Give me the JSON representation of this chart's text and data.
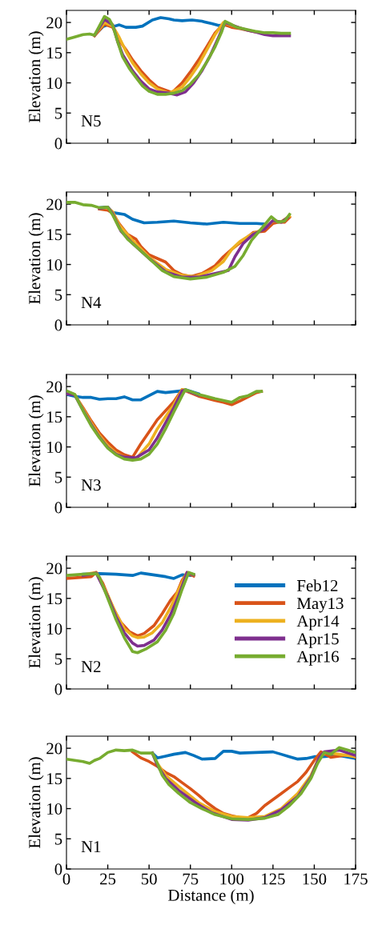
{
  "chart_data": [
    {
      "type": "line",
      "ylabel": "Elevation (m)",
      "annotations": [
        "N5"
      ],
      "xlim": [
        0,
        175
      ],
      "xticks": [
        0,
        25,
        50,
        75,
        100,
        125,
        150,
        175
      ],
      "ylim": [
        0,
        22
      ],
      "yticks": [
        0,
        5,
        10,
        15,
        20
      ],
      "tick_labels": "y",
      "legend": false,
      "series": [
        {
          "color": "#0072bd",
          "x": [
            17,
            22,
            25,
            28,
            32,
            36,
            42,
            46,
            52,
            57,
            62,
            65,
            70,
            76,
            82,
            88,
            92,
            96,
            100
          ],
          "values": [
            17.9,
            19.3,
            19.6,
            19.3,
            19.6,
            19.2,
            19.2,
            19.4,
            20.4,
            20.8,
            20.6,
            20.4,
            20.3,
            20.4,
            20.2,
            19.8,
            19.5,
            19.6,
            19.4
          ]
        },
        {
          "color": "#d95319",
          "x": [
            17,
            23,
            28,
            32,
            36,
            40,
            45,
            50,
            55,
            64,
            70,
            75,
            80,
            85,
            90,
            95,
            100,
            105,
            110,
            115
          ],
          "values": [
            17.8,
            19.7,
            19.2,
            17.0,
            15.5,
            13.8,
            12.0,
            10.5,
            9.3,
            8.4,
            10.0,
            11.8,
            13.8,
            16.0,
            18.3,
            19.7,
            19.2,
            19.0,
            18.7,
            18.4
          ]
        },
        {
          "color": "#edb120",
          "x": [
            17,
            23,
            28,
            32,
            36,
            40,
            45,
            50,
            55,
            62,
            70,
            75,
            80,
            85,
            90,
            95,
            100,
            105
          ],
          "values": [
            17.9,
            20.0,
            19.4,
            17.5,
            15.2,
            13.3,
            11.5,
            10.0,
            9.0,
            8.3,
            9.3,
            11.0,
            13.0,
            15.5,
            18.0,
            20.0,
            19.5,
            19.1
          ]
        },
        {
          "color": "#7e2f8e",
          "x": [
            17,
            23,
            28,
            31,
            34,
            40,
            45,
            50,
            55,
            62,
            67,
            72,
            77,
            82,
            87,
            92,
            96,
            100,
            105,
            110,
            115,
            120,
            125,
            130,
            135
          ],
          "values": [
            17.9,
            20.5,
            19.6,
            16.8,
            14.7,
            12.0,
            10.3,
            9.0,
            8.5,
            8.3,
            8.0,
            8.5,
            10.0,
            12.0,
            14.5,
            17.5,
            20.0,
            19.6,
            19.1,
            18.7,
            18.4,
            18.0,
            17.8,
            17.8,
            17.8
          ]
        },
        {
          "color": "#77ac30",
          "x": [
            0,
            5,
            10,
            14,
            17,
            23,
            26,
            28,
            31,
            34,
            38,
            42,
            46,
            50,
            55,
            60,
            65,
            70,
            75,
            80,
            85,
            90,
            94,
            96,
            99,
            103,
            110,
            115,
            120,
            125,
            130,
            135
          ],
          "values": [
            17.2,
            17.6,
            18.0,
            18.1,
            17.9,
            21.0,
            20.5,
            19.5,
            16.8,
            14.3,
            12.4,
            10.9,
            9.5,
            8.6,
            8.1,
            8.1,
            8.3,
            8.7,
            9.8,
            11.3,
            13.5,
            16.0,
            18.5,
            20.2,
            19.8,
            19.2,
            18.8,
            18.5,
            18.3,
            18.3,
            18.2,
            18.2
          ]
        }
      ]
    },
    {
      "type": "line",
      "ylabel": "Elevation (m)",
      "annotations": [
        "N4"
      ],
      "xlim": [
        0,
        175
      ],
      "xticks": [
        0,
        25,
        50,
        75,
        100,
        125,
        150,
        175
      ],
      "ylim": [
        0,
        22
      ],
      "yticks": [
        0,
        5,
        10,
        15,
        20
      ],
      "tick_labels": "y",
      "legend": false,
      "series": [
        {
          "color": "#0072bd",
          "x": [
            20,
            25,
            28,
            35,
            40,
            47,
            55,
            65,
            75,
            85,
            95,
            105,
            115,
            120
          ],
          "values": [
            19.4,
            19.5,
            18.6,
            18.3,
            17.5,
            16.9,
            17.0,
            17.2,
            16.9,
            16.7,
            17.0,
            16.8,
            16.8,
            16.7
          ]
        },
        {
          "color": "#d95319",
          "x": [
            20,
            25,
            28,
            32,
            37,
            42,
            45,
            50,
            55,
            60,
            65,
            70,
            75,
            82,
            90,
            95,
            100,
            107,
            113,
            120,
            125,
            128,
            132,
            135
          ],
          "values": [
            19.2,
            19.0,
            18.5,
            16.7,
            15.0,
            14.2,
            13.0,
            11.6,
            11.0,
            10.4,
            9.0,
            8.3,
            8.0,
            8.5,
            9.8,
            11.3,
            12.5,
            14.0,
            15.3,
            15.5,
            16.8,
            17.0,
            17.0,
            17.8
          ]
        },
        {
          "color": "#edb120",
          "x": [
            20,
            25,
            28,
            32,
            40,
            50,
            60,
            70,
            78,
            88,
            95,
            100,
            105,
            112,
            120,
            125,
            130,
            135
          ],
          "values": [
            19.3,
            19.4,
            18.7,
            16.5,
            14.0,
            11.2,
            9.2,
            8.2,
            8.0,
            9.0,
            10.5,
            12.5,
            13.8,
            15.0,
            16.0,
            17.2,
            17.1,
            18.0
          ]
        },
        {
          "color": "#7e2f8e",
          "x": [
            20,
            25,
            28,
            33,
            40,
            50,
            60,
            70,
            80,
            90,
            98,
            102,
            107,
            113,
            120,
            125,
            130,
            134
          ],
          "values": [
            19.3,
            19.5,
            18.4,
            15.5,
            13.5,
            11.0,
            8.8,
            7.9,
            7.9,
            8.5,
            9.0,
            11.3,
            13.5,
            15.0,
            15.9,
            17.3,
            17.0,
            17.8
          ]
        },
        {
          "color": "#77ac30",
          "x": [
            0,
            5,
            10,
            15,
            20,
            25,
            28,
            32,
            37,
            42,
            50,
            58,
            65,
            75,
            85,
            95,
            102,
            107,
            112,
            117,
            124,
            128,
            132,
            135
          ],
          "values": [
            20.3,
            20.3,
            19.9,
            19.8,
            19.4,
            19.5,
            18.2,
            16.0,
            14.2,
            13.0,
            11.0,
            9.0,
            8.0,
            7.6,
            7.9,
            8.7,
            9.7,
            11.5,
            14.0,
            15.6,
            17.9,
            17.0,
            17.2,
            18.3
          ]
        }
      ]
    },
    {
      "type": "line",
      "ylabel": "Elevation (m)",
      "annotations": [
        "N3"
      ],
      "xlim": [
        0,
        175
      ],
      "xticks": [
        0,
        25,
        50,
        75,
        100,
        125,
        150,
        175
      ],
      "ylim": [
        0,
        22
      ],
      "yticks": [
        0,
        5,
        10,
        15,
        20
      ],
      "tick_labels": "y",
      "legend": false,
      "series": [
        {
          "color": "#0072bd",
          "x": [
            0,
            5,
            10,
            15,
            20,
            25,
            30,
            35,
            40,
            45,
            50,
            55,
            60,
            70,
            72,
            80
          ],
          "values": [
            18.7,
            18.4,
            18.2,
            18.2,
            17.9,
            18.0,
            18.0,
            18.3,
            17.8,
            17.8,
            18.5,
            19.2,
            19.0,
            19.3,
            19.5,
            18.8
          ]
        },
        {
          "color": "#d95319",
          "x": [
            0,
            5,
            10,
            15,
            20,
            25,
            30,
            35,
            40,
            45,
            50,
            55,
            60,
            65,
            70,
            72,
            80,
            90,
            95,
            100,
            105,
            110,
            115,
            118
          ],
          "values": [
            19.2,
            18.6,
            16.5,
            14.3,
            12.3,
            10.8,
            9.5,
            8.7,
            8.3,
            10.5,
            12.5,
            14.5,
            16.0,
            17.5,
            19.5,
            19.3,
            18.4,
            17.7,
            17.4,
            17.0,
            17.6,
            18.3,
            19.0,
            19.2
          ]
        },
        {
          "color": "#edb120",
          "x": [
            0,
            5,
            10,
            15,
            20,
            25,
            30,
            35,
            42,
            50,
            55,
            60,
            65,
            70,
            72,
            80
          ],
          "values": [
            19.2,
            18.7,
            16.3,
            14.0,
            11.9,
            10.2,
            9.0,
            8.3,
            8.0,
            10.5,
            13.0,
            15.0,
            17.0,
            19.5,
            19.4,
            18.6
          ]
        },
        {
          "color": "#7e2f8e",
          "x": [
            0,
            5,
            10,
            15,
            20,
            25,
            30,
            35,
            42,
            50,
            55,
            60,
            65,
            70,
            72,
            80
          ],
          "values": [
            18.8,
            18.6,
            16.1,
            13.7,
            11.6,
            9.9,
            8.8,
            8.3,
            8.2,
            9.5,
            11.5,
            14.0,
            16.5,
            19.3,
            19.4,
            18.6
          ]
        },
        {
          "color": "#77ac30",
          "x": [
            0,
            5,
            10,
            15,
            20,
            25,
            30,
            35,
            40,
            45,
            50,
            55,
            60,
            65,
            70,
            72,
            80,
            90,
            95,
            100,
            105,
            110,
            115,
            118
          ],
          "values": [
            19.3,
            18.7,
            16.0,
            13.5,
            11.5,
            9.8,
            8.7,
            8.0,
            7.8,
            8.0,
            8.8,
            10.5,
            13.0,
            15.8,
            18.5,
            19.5,
            18.7,
            18.0,
            17.7,
            17.4,
            18.2,
            18.5,
            19.2,
            19.2
          ]
        }
      ]
    },
    {
      "type": "line",
      "ylabel": "Elevation (m)",
      "annotations": [
        "N2"
      ],
      "xlim": [
        0,
        175
      ],
      "xticks": [
        0,
        25,
        50,
        75,
        100,
        125,
        150,
        175
      ],
      "ylim": [
        0,
        22
      ],
      "yticks": [
        0,
        5,
        10,
        15,
        20
      ],
      "tick_labels": "y",
      "legend": "right",
      "series": [
        {
          "name": "Feb12",
          "color": "#0072bd",
          "x": [
            10,
            20,
            30,
            40,
            45,
            50,
            55,
            60,
            65,
            70,
            75
          ],
          "values": [
            19.0,
            19.1,
            19.0,
            18.8,
            19.2,
            19.0,
            18.8,
            18.6,
            18.3,
            18.9,
            18.8
          ]
        },
        {
          "name": "May13",
          "color": "#d95319",
          "x": [
            0,
            15,
            18,
            22,
            28,
            33,
            38,
            43,
            47,
            53,
            58,
            63,
            67,
            70,
            73,
            77
          ],
          "values": [
            18.3,
            18.6,
            19.3,
            17.5,
            13.5,
            11.0,
            9.5,
            8.8,
            9.2,
            10.5,
            12.5,
            14.7,
            16.0,
            18.0,
            19.2,
            18.7
          ]
        },
        {
          "name": "Apr14",
          "color": "#edb120",
          "x": [
            10,
            18,
            25,
            30,
            35,
            40,
            43,
            47,
            52,
            58,
            63,
            68,
            73,
            77
          ],
          "values": [
            18.9,
            19.3,
            15.5,
            12.5,
            10.0,
            8.8,
            8.5,
            8.6,
            9.3,
            11.0,
            13.5,
            16.5,
            19.3,
            18.9
          ]
        },
        {
          "name": "Apr15",
          "color": "#7e2f8e",
          "x": [
            10,
            18,
            25,
            30,
            35,
            40,
            43,
            47,
            53,
            58,
            63,
            68,
            73,
            77
          ],
          "values": [
            18.8,
            19.2,
            15.3,
            12.0,
            9.3,
            7.6,
            7.1,
            7.2,
            8.1,
            9.8,
            12.3,
            15.5,
            19.3,
            18.9
          ]
        },
        {
          "name": "Apr16",
          "color": "#77ac30",
          "x": [
            0,
            10,
            18,
            20,
            25,
            30,
            35,
            40,
            43,
            48,
            55,
            60,
            65,
            70,
            74,
            77
          ],
          "values": [
            18.8,
            19.0,
            19.1,
            18.5,
            15.0,
            11.5,
            8.5,
            6.2,
            6.0,
            6.6,
            7.8,
            9.7,
            12.5,
            16.5,
            19.3,
            19.0
          ]
        }
      ]
    },
    {
      "type": "line",
      "ylabel": "Elevation (m)",
      "xlabel": "Distance (m)",
      "annotations": [
        "N1"
      ],
      "xlim": [
        0,
        175
      ],
      "xticks": [
        0,
        25,
        50,
        75,
        100,
        125,
        150,
        175
      ],
      "ylim": [
        0,
        22
      ],
      "yticks": [
        0,
        5,
        10,
        15,
        20
      ],
      "legend": false,
      "series": [
        {
          "color": "#0072bd",
          "x": [
            52,
            55,
            60,
            65,
            72,
            77,
            82,
            90,
            95,
            100,
            105,
            115,
            125,
            130,
            135,
            140,
            145,
            150,
            155,
            165,
            175
          ],
          "values": [
            19.2,
            18.4,
            18.7,
            19.0,
            19.3,
            18.8,
            18.2,
            18.3,
            19.5,
            19.5,
            19.2,
            19.3,
            19.4,
            19.0,
            18.6,
            18.2,
            18.3,
            18.6,
            18.6,
            18.8,
            18.3
          ]
        },
        {
          "color": "#d95319",
          "x": [
            40,
            45,
            50,
            55,
            60,
            65,
            70,
            75,
            80,
            85,
            90,
            95,
            100,
            105,
            110,
            115,
            120,
            125,
            130,
            135,
            140,
            145,
            150,
            154,
            160,
            170,
            175
          ],
          "values": [
            19.4,
            18.4,
            17.8,
            17.0,
            16.0,
            15.3,
            14.3,
            13.3,
            12.2,
            11.0,
            10.0,
            9.2,
            8.8,
            8.5,
            8.5,
            9.2,
            10.5,
            11.5,
            12.5,
            13.5,
            14.5,
            16.0,
            18.0,
            19.4,
            18.5,
            18.9,
            18.5
          ]
        },
        {
          "color": "#edb120",
          "x": [
            52,
            55,
            60,
            70,
            80,
            90,
            100,
            110,
            120,
            130,
            140,
            148,
            153,
            157,
            165,
            175
          ],
          "values": [
            19.2,
            17.5,
            15.5,
            13.2,
            11.0,
            9.5,
            8.7,
            8.5,
            8.7,
            10.0,
            12.5,
            15.5,
            18.5,
            19.3,
            19.0,
            18.6
          ]
        },
        {
          "color": "#7e2f8e",
          "x": [
            52,
            55,
            60,
            68,
            78,
            88,
            100,
            110,
            120,
            130,
            140,
            148,
            153,
            156,
            165,
            175
          ],
          "values": [
            19.2,
            17.2,
            15.0,
            13.0,
            11.0,
            9.3,
            8.2,
            8.1,
            8.5,
            9.8,
            12.0,
            15.2,
            18.5,
            19.4,
            19.7,
            18.8
          ]
        },
        {
          "color": "#77ac30",
          "x": [
            0,
            5,
            10,
            14,
            17,
            20,
            25,
            30,
            35,
            40,
            45,
            52,
            55,
            58,
            62,
            68,
            75,
            82,
            90,
            100,
            110,
            120,
            128,
            135,
            142,
            148,
            152,
            156,
            160,
            165,
            170,
            175
          ],
          "values": [
            18.2,
            18.0,
            17.8,
            17.5,
            18.0,
            18.3,
            19.3,
            19.7,
            19.6,
            19.7,
            19.2,
            19.2,
            17.5,
            15.5,
            14.0,
            12.5,
            11.0,
            10.0,
            9.0,
            8.3,
            8.2,
            8.4,
            9.0,
            10.5,
            12.5,
            15.0,
            17.5,
            19.3,
            19.0,
            20.1,
            19.7,
            19.3
          ]
        }
      ]
    }
  ]
}
